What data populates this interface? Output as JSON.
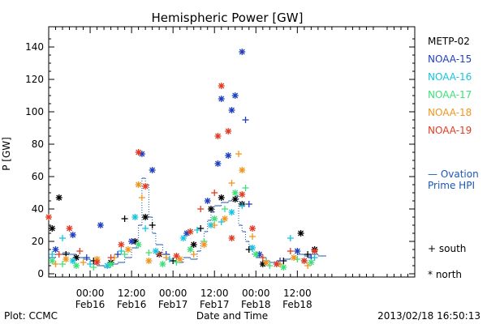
{
  "chart_data": {
    "type": "scatter",
    "title": "Hemispheric Power [GW]",
    "ylabel": "P [GW]",
    "xlabel": "Date and Time",
    "footer_left": "Plot: CCMC",
    "footer_right": "2013/02/18 16:50:13",
    "ylim": [
      0,
      152
    ],
    "xlim_hours": [
      -12,
      94
    ],
    "yticks": [
      0,
      20,
      40,
      60,
      80,
      100,
      120,
      140
    ],
    "xticks": [
      {
        "h": 0,
        "time": "00:00",
        "day": "Feb16"
      },
      {
        "h": 12,
        "time": "12:00",
        "day": "Feb16"
      },
      {
        "h": 24,
        "time": "00:00",
        "day": "Feb17"
      },
      {
        "h": 36,
        "time": "12:00",
        "day": "Feb17"
      },
      {
        "h": 48,
        "time": "00:00",
        "day": "Feb18"
      },
      {
        "h": 60,
        "time": "12:00",
        "day": "Feb18"
      }
    ],
    "legend": [
      {
        "name": "METP-02",
        "color": "#000000"
      },
      {
        "name": "NOAA-15",
        "color": "#1f3fbf"
      },
      {
        "name": "NOAA-16",
        "color": "#17c4e0"
      },
      {
        "name": "NOAA-17",
        "color": "#3ee07a"
      },
      {
        "name": "NOAA-18",
        "color": "#f0961e"
      },
      {
        "name": "NOAA-19",
        "color": "#e33b22"
      }
    ],
    "ovation_label": [
      "— Ovation",
      "Prime HPI"
    ],
    "ovation_color": "#1a57b5",
    "marker_legend": [
      {
        "symbol": "+",
        "label": "south"
      },
      {
        "symbol": "*",
        "label": "north"
      }
    ],
    "ovation_steps": [
      [
        -12,
        10
      ],
      [
        -10,
        12
      ],
      [
        -8,
        13
      ],
      [
        -6,
        12
      ],
      [
        -4,
        10
      ],
      [
        -2,
        9
      ],
      [
        0,
        6
      ],
      [
        2,
        5
      ],
      [
        4,
        4
      ],
      [
        6,
        6
      ],
      [
        8,
        7
      ],
      [
        10,
        10
      ],
      [
        12,
        16
      ],
      [
        14,
        30
      ],
      [
        15,
        59
      ],
      [
        16,
        55
      ],
      [
        17,
        35
      ],
      [
        18,
        25
      ],
      [
        19,
        18
      ],
      [
        21,
        12
      ],
      [
        23,
        8
      ],
      [
        25,
        7
      ],
      [
        27,
        10
      ],
      [
        29,
        9
      ],
      [
        31,
        14
      ],
      [
        32,
        20
      ],
      [
        33,
        26
      ],
      [
        34,
        33
      ],
      [
        35,
        38
      ],
      [
        36,
        42
      ],
      [
        38,
        44
      ],
      [
        40,
        45
      ],
      [
        41,
        46
      ],
      [
        42,
        48
      ],
      [
        43,
        30
      ],
      [
        44,
        26
      ],
      [
        45,
        20
      ],
      [
        46,
        17
      ],
      [
        47,
        12
      ],
      [
        48,
        10
      ],
      [
        50,
        8
      ],
      [
        52,
        7
      ],
      [
        54,
        8
      ],
      [
        56,
        9
      ],
      [
        58,
        10
      ],
      [
        60,
        12
      ],
      [
        62,
        11
      ],
      [
        64,
        12
      ],
      [
        66,
        11
      ]
    ],
    "series": [
      {
        "name": "METP-02",
        "color": "#000000",
        "points": [
          [
            -11,
            28,
            "*"
          ],
          [
            -9,
            47,
            "*"
          ],
          [
            -7,
            12,
            "+"
          ],
          [
            -4,
            10,
            "*"
          ],
          [
            1,
            8,
            "+"
          ],
          [
            6,
            7,
            "*"
          ],
          [
            10,
            34,
            "+"
          ],
          [
            13,
            20,
            "*"
          ],
          [
            16,
            35,
            "*"
          ],
          [
            18,
            30,
            "+"
          ],
          [
            20,
            12,
            "*"
          ],
          [
            24,
            8,
            "+"
          ],
          [
            30,
            18,
            "*"
          ],
          [
            32,
            28,
            "+"
          ],
          [
            35,
            40,
            "*"
          ],
          [
            38,
            47,
            "*"
          ],
          [
            42,
            46,
            "*"
          ],
          [
            44,
            43,
            "*"
          ],
          [
            46,
            15,
            "+"
          ],
          [
            50,
            6,
            "*"
          ],
          [
            56,
            8,
            "+"
          ],
          [
            61,
            25,
            "*"
          ],
          [
            63,
            12,
            "+"
          ],
          [
            65,
            15,
            "*"
          ]
        ]
      },
      {
        "name": "NOAA-15",
        "color": "#1f3fbf",
        "points": [
          [
            -10,
            15,
            "*"
          ],
          [
            -5,
            24,
            "*"
          ],
          [
            -1,
            10,
            "+"
          ],
          [
            3,
            30,
            "*"
          ],
          [
            8,
            12,
            "+"
          ],
          [
            12,
            20,
            "*"
          ],
          [
            15,
            74,
            "*"
          ],
          [
            18,
            64,
            "*"
          ],
          [
            22,
            12,
            "+"
          ],
          [
            28,
            25,
            "*"
          ],
          [
            34,
            45,
            "*"
          ],
          [
            37,
            68,
            "*"
          ],
          [
            38,
            108,
            "*"
          ],
          [
            40,
            73,
            "*"
          ],
          [
            41,
            101,
            "*"
          ],
          [
            42,
            110,
            "*"
          ],
          [
            44,
            137,
            "*"
          ],
          [
            45,
            95,
            "+"
          ],
          [
            46,
            43,
            "+"
          ],
          [
            49,
            12,
            "*"
          ],
          [
            55,
            8,
            "+"
          ],
          [
            60,
            14,
            "*"
          ],
          [
            64,
            10,
            "+"
          ]
        ]
      },
      {
        "name": "NOAA-16",
        "color": "#17c4e0",
        "points": [
          [
            -11,
            12,
            "+"
          ],
          [
            -8,
            22,
            "+"
          ],
          [
            -5,
            8,
            "*"
          ],
          [
            0,
            6,
            "+"
          ],
          [
            5,
            5,
            "*"
          ],
          [
            9,
            14,
            "+"
          ],
          [
            13,
            35,
            "*"
          ],
          [
            16,
            28,
            "+"
          ],
          [
            19,
            14,
            "*"
          ],
          [
            23,
            9,
            "+"
          ],
          [
            27,
            22,
            "*"
          ],
          [
            31,
            27,
            "+"
          ],
          [
            35,
            30,
            "*"
          ],
          [
            38,
            32,
            "+"
          ],
          [
            41,
            38,
            "*"
          ],
          [
            44,
            42,
            "+"
          ],
          [
            47,
            16,
            "*"
          ],
          [
            51,
            8,
            "+"
          ],
          [
            54,
            6,
            "*"
          ],
          [
            58,
            22,
            "+"
          ],
          [
            62,
            8,
            "*"
          ],
          [
            65,
            10,
            "+"
          ]
        ]
      },
      {
        "name": "NOAA-17",
        "color": "#3ee07a",
        "points": [
          [
            -11,
            8,
            "*"
          ],
          [
            -8,
            6,
            "+"
          ],
          [
            -4,
            5,
            "*"
          ],
          [
            1,
            4,
            "+"
          ],
          [
            6,
            6,
            "*"
          ],
          [
            10,
            12,
            "+"
          ],
          [
            14,
            18,
            "*"
          ],
          [
            17,
            13,
            "+"
          ],
          [
            21,
            6,
            "*"
          ],
          [
            25,
            7,
            "+"
          ],
          [
            29,
            15,
            "*"
          ],
          [
            33,
            20,
            "+"
          ],
          [
            36,
            34,
            "*"
          ],
          [
            39,
            40,
            "+"
          ],
          [
            42,
            50,
            "*"
          ],
          [
            45,
            53,
            "+"
          ],
          [
            48,
            12,
            "*"
          ],
          [
            52,
            5,
            "+"
          ],
          [
            56,
            4,
            "*"
          ],
          [
            60,
            9,
            "+"
          ],
          [
            64,
            7,
            "*"
          ]
        ]
      },
      {
        "name": "NOAA-18",
        "color": "#f0961e",
        "points": [
          [
            -10,
            6,
            "+"
          ],
          [
            -7,
            9,
            "*"
          ],
          [
            -2,
            7,
            "+"
          ],
          [
            2,
            9,
            "*"
          ],
          [
            7,
            10,
            "+"
          ],
          [
            11,
            15,
            "*"
          ],
          [
            14,
            55,
            "*"
          ],
          [
            15,
            47,
            "+"
          ],
          [
            17,
            8,
            "*"
          ],
          [
            22,
            10,
            "+"
          ],
          [
            26,
            9,
            "*"
          ],
          [
            30,
            12,
            "+"
          ],
          [
            33,
            18,
            "*"
          ],
          [
            36,
            30,
            "+"
          ],
          [
            39,
            34,
            "*"
          ],
          [
            41,
            56,
            "+"
          ],
          [
            43,
            74,
            "+"
          ],
          [
            44,
            64,
            "*"
          ],
          [
            47,
            23,
            "+"
          ],
          [
            51,
            7,
            "*"
          ],
          [
            55,
            6,
            "+"
          ],
          [
            59,
            10,
            "*"
          ],
          [
            63,
            5,
            "+"
          ]
        ]
      },
      {
        "name": "NOAA-19",
        "color": "#e33b22",
        "points": [
          [
            -12,
            35,
            "*"
          ],
          [
            -9,
            12,
            "+"
          ],
          [
            -6,
            28,
            "*"
          ],
          [
            -3,
            14,
            "+"
          ],
          [
            2,
            7,
            "*"
          ],
          [
            6,
            10,
            "+"
          ],
          [
            9,
            18,
            "*"
          ],
          [
            14,
            75,
            "*"
          ],
          [
            16,
            54,
            "*"
          ],
          [
            20,
            12,
            "+"
          ],
          [
            25,
            11,
            "*"
          ],
          [
            29,
            26,
            "*"
          ],
          [
            32,
            40,
            "+"
          ],
          [
            36,
            50,
            "+"
          ],
          [
            37,
            85,
            "*"
          ],
          [
            38,
            116,
            "*"
          ],
          [
            40,
            88,
            "*"
          ],
          [
            41,
            22,
            "*"
          ],
          [
            44,
            49,
            "*"
          ],
          [
            47,
            28,
            "*"
          ],
          [
            50,
            10,
            "+"
          ],
          [
            54,
            6,
            "*"
          ],
          [
            58,
            14,
            "+"
          ],
          [
            62,
            8,
            "*"
          ],
          [
            65,
            14,
            "*"
          ]
        ]
      }
    ]
  }
}
